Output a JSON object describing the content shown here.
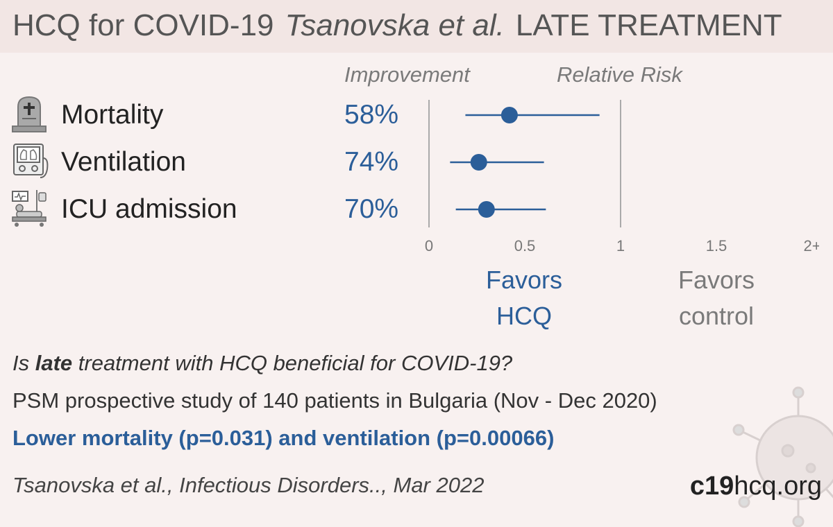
{
  "header": {
    "topic": "HCQ for COVID-19",
    "authors": "Tsanovska et al.",
    "stage": "LATE TREATMENT"
  },
  "columns": {
    "improvement": "Improvement",
    "relative_risk": "Relative Risk"
  },
  "rows": [
    {
      "label": "Mortality",
      "improvement": "58%",
      "icon": "tombstone-icon"
    },
    {
      "label": "Ventilation",
      "improvement": "74%",
      "icon": "ventilator-icon"
    },
    {
      "label": "ICU admission",
      "improvement": "70%",
      "icon": "hospital-bed-icon"
    }
  ],
  "chart_data": {
    "type": "scatter",
    "title": "",
    "xlabel": "Relative Risk",
    "ticks": [
      "0",
      "0.5",
      "1",
      "1.5",
      "2+"
    ],
    "tick_values": [
      0,
      0.5,
      1,
      1.5,
      2
    ],
    "xlim": [
      0,
      2
    ],
    "series": [
      {
        "outcome": "Mortality",
        "rr": 0.42,
        "ci_low": 0.19,
        "ci_high": 0.89
      },
      {
        "outcome": "Ventilation",
        "rr": 0.26,
        "ci_low": 0.11,
        "ci_high": 0.6
      },
      {
        "outcome": "ICU admission",
        "rr": 0.3,
        "ci_low": 0.14,
        "ci_high": 0.61
      }
    ],
    "colors": {
      "point": "#2b5e99",
      "axis": "#aaaaaa",
      "tick": "#777777"
    }
  },
  "favors": {
    "hcq_line1": "Favors",
    "hcq_line2": "HCQ",
    "control_line1": "Favors",
    "control_line2": "control"
  },
  "summary": {
    "question_pre": "Is ",
    "question_bold": "late",
    "question_post": " treatment with HCQ beneficial for COVID-19?",
    "design": "PSM prospective study of 140 patients in Bulgaria (Nov - Dec 2020)",
    "result": "Lower mortality (p=0.031) and ventilation (p=0.00066)"
  },
  "citation": "Tsanovska et al., Infectious Disorders.., Mar 2022",
  "site": {
    "bold": "c19",
    "rest": "hcq.org"
  }
}
